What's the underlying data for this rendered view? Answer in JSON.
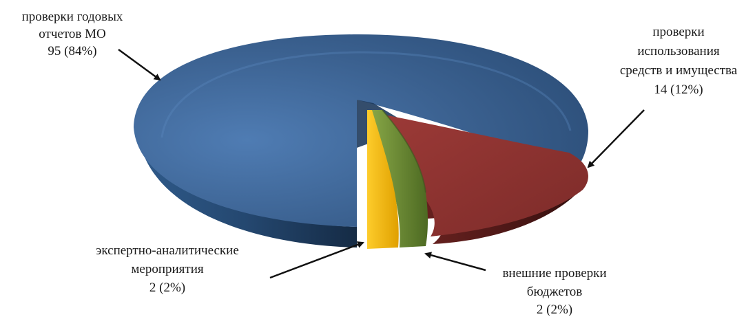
{
  "chart_data": {
    "type": "pie",
    "style": "3d-exploded",
    "series": [
      {
        "category": "проверки годовых отчетов МО",
        "value_label": "95 (84%)",
        "value": 95,
        "percent": 84,
        "color": "#3b6190"
      },
      {
        "category": "проверки использования средств и имущества",
        "value_label": "14 (12%)",
        "value": 14,
        "percent": 12,
        "color": "#8e3432"
      },
      {
        "category": "внешние проверки бюджетов",
        "value_label": "2 (2%)",
        "value": 2,
        "percent": 2,
        "color": "#6f8e36"
      },
      {
        "category": "экспертно-аналитические мероприятия",
        "value_label": "2 (2%)",
        "value": 2,
        "percent": 2,
        "color": "#f3b80c"
      }
    ],
    "labels": {
      "annual": [
        "проверки годовых",
        "отчетов МО",
        "95 (84%)"
      ],
      "usage": [
        "проверки",
        "использования",
        "средств и имущества",
        "14 (12%)"
      ],
      "external": [
        "внешние проверки",
        "бюджетов",
        "2 (2%)"
      ],
      "expert": [
        "экспертно-аналитические",
        "мероприятия",
        "2 (2%)"
      ]
    }
  }
}
